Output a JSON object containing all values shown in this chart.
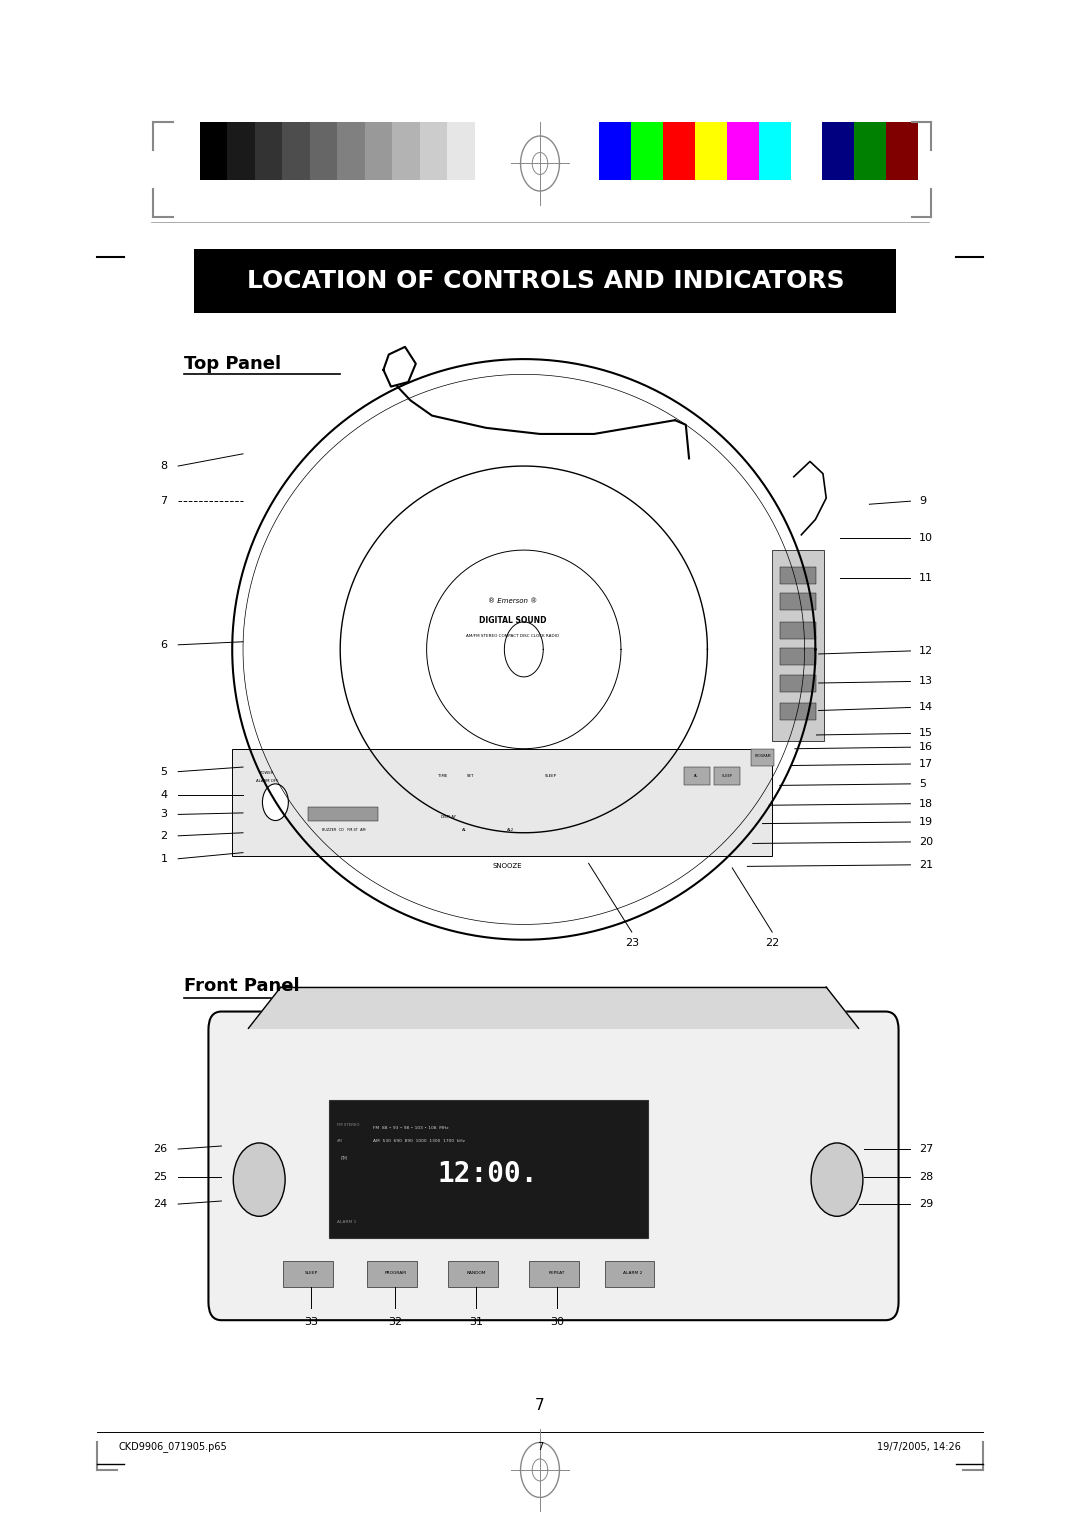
{
  "title": "LOCATION OF CONTROLS AND INDICATORS",
  "title_bg": "#000000",
  "title_color": "#ffffff",
  "title_fontsize": 18,
  "top_panel_label": "Top Panel",
  "front_panel_label": "Front Panel",
  "page_number": "7",
  "footer_left": "CKD9906_071905.p65",
  "footer_center": "7",
  "footer_right": "19/7/2005, 14:26",
  "bg_color": "#ffffff",
  "grayscale_bars": [
    "#000000",
    "#1a1a1a",
    "#333333",
    "#4d4d4d",
    "#666666",
    "#808080",
    "#999999",
    "#b3b3b3",
    "#cccccc",
    "#e6e6e6",
    "#ffffff"
  ],
  "color_bars": [
    "#0000ff",
    "#00ff00",
    "#ff0000",
    "#ffff00",
    "#ff00ff",
    "#00ffff",
    "#ffffff",
    "#000080",
    "#008000",
    "#800000"
  ]
}
